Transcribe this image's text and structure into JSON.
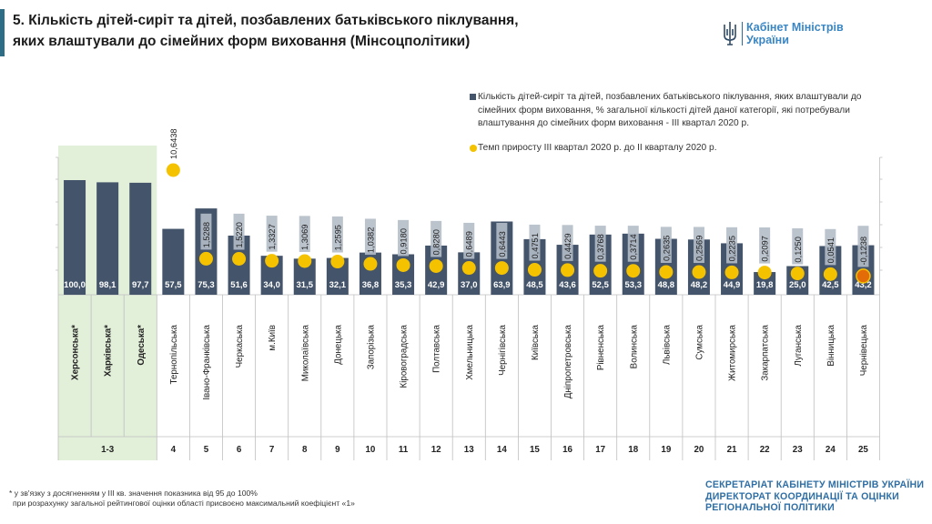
{
  "header": {
    "title_line1": "5. Кількість дітей-сиріт та дітей, позбавлених батьківського піклування,",
    "title_line2": "яких влаштували до сімейних форм виховання (Мінсоцполітики)",
    "logo_line1": "Кабінет Міністрів",
    "logo_line2": "України"
  },
  "legend": {
    "bars": "Кількість дітей-сиріт та дітей, позбавлених батьківського піклування, яких влаштували до сімейних форм виховання, % загальної кількості дітей даної категорії, які потребували влаштування до сімейних форм виховання - ІІІ квартал 2020 р.",
    "dots": "Темп приросту ІІІ квартал 2020 р. до ІІ кварталу 2020 р."
  },
  "chart_data": {
    "type": "bar",
    "categories": [
      "Херсонська*",
      "Харківська*",
      "Одеська*",
      "Тернопільська",
      "Івано-Франківська",
      "Черкаська",
      "м.Київ",
      "Миколаївська",
      "Донецька",
      "Запорізька",
      "Кіровоградська",
      "Полтавська",
      "Хмельницька",
      "Чернігівська",
      "Київська",
      "Дніпропетровська",
      "Рівненська",
      "Волинська",
      "Львівська",
      "Сумська",
      "Житомирська",
      "Закарпатська",
      "Луганська",
      "Вінницька",
      "Чернівецька"
    ],
    "ranks": [
      "1-3",
      "4",
      "5",
      "6",
      "7",
      "8",
      "9",
      "10",
      "11",
      "12",
      "13",
      "14",
      "15",
      "16",
      "17",
      "18",
      "19",
      "20",
      "21",
      "22",
      "23",
      "24",
      "25"
    ],
    "bar_labels": [
      "100,0",
      "98,1",
      "97,7",
      "57,5",
      "75,3",
      "51,6",
      "34,0",
      "31,5",
      "32,1",
      "36,8",
      "35,3",
      "42,9",
      "37,0",
      "63,9",
      "48,5",
      "43,6",
      "52,5",
      "53,3",
      "48,8",
      "48,2",
      "44,9",
      "19,8",
      "25,0",
      "42,5",
      "43,2"
    ],
    "bar_values": [
      100.0,
      98.1,
      97.7,
      57.5,
      75.3,
      51.6,
      34.0,
      31.5,
      32.1,
      36.8,
      35.3,
      42.9,
      37.0,
      63.9,
      48.5,
      43.6,
      52.5,
      53.3,
      48.8,
      48.2,
      44.9,
      19.8,
      25.0,
      42.5,
      43.2
    ],
    "dot_labels": [
      "",
      "",
      "",
      "10,6438",
      "1,5288",
      "1,5220",
      "1,3327",
      "1,3069",
      "1,2595",
      "1,0382",
      "0,9180",
      "0,8280",
      "0,6489",
      "0,6443",
      "0,4751",
      "0,4429",
      "0,3768",
      "0,3714",
      "0,2635",
      "0,2569",
      "0,2235",
      "0,2097",
      "0,1250",
      "0,0541",
      "-0,1238"
    ],
    "dot_values": [
      null,
      null,
      null,
      10.6438,
      1.5288,
      1.522,
      1.3327,
      1.3069,
      1.2595,
      1.0382,
      0.918,
      0.828,
      0.6489,
      0.6443,
      0.4751,
      0.4429,
      0.3768,
      0.3714,
      0.2635,
      0.2569,
      0.2235,
      0.2097,
      0.125,
      0.0541,
      -0.1238
    ],
    "bar_color": "#44546a",
    "dot_color": "#f5c200",
    "dot_negative_color": "#e36c09",
    "highlight_color": "#e2efd9",
    "grid": true
  },
  "footnote": {
    "line1": "* у зв'язку з досягненням у ІІІ кв. значення показника від 95 до 100%",
    "line2": "при розрахунку загальної рейтингової оцінки області присвоєно максимальний коефіцієнт «1»"
  },
  "footer": {
    "line1": "СЕКРЕТАРІАТ КАБІНЕТУ МІНІСТРІВ УКРАЇНИ",
    "line2": "ДИРЕКТОРАТ КООРДИНАЦІЇ ТА ОЦІНКИ",
    "line3": "РЕГІОНАЛЬНОЇ ПОЛІТИКИ"
  }
}
